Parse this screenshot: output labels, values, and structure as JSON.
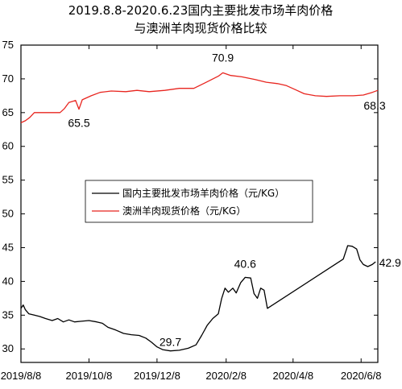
{
  "chart_data": {
    "type": "line",
    "title_line1": "2019.8.8-2020.6.23国内主要批发市场羊肉价格",
    "title_line2": "与澳洲羊肉现货价格比较",
    "xlabel": "",
    "ylabel": "",
    "ylim": [
      28,
      75
    ],
    "xlim": [
      "2019-08-08",
      "2020-06-23"
    ],
    "yticks": [
      "30",
      "35",
      "40",
      "45",
      "50",
      "55",
      "60",
      "65",
      "70",
      "75"
    ],
    "xticks": [
      {
        "date": "2019-08-08",
        "label": "2019/8/8"
      },
      {
        "date": "2019-10-08",
        "label": "2019/10/8"
      },
      {
        "date": "2019-12-08",
        "label": "2019/12/8"
      },
      {
        "date": "2020-02-08",
        "label": "2020/2/8"
      },
      {
        "date": "2020-04-08",
        "label": "2020/4/8"
      },
      {
        "date": "2020-06-08",
        "label": "2020/6/8"
      }
    ],
    "grid": false,
    "legend_position": "center",
    "series": [
      {
        "name": "国内主要批发市场羊肉价格（元/KG）",
        "color": "#000000",
        "points": [
          [
            "2019-08-08",
            36.0
          ],
          [
            "2019-08-10",
            36.5
          ],
          [
            "2019-08-12",
            35.8
          ],
          [
            "2019-08-15",
            35.2
          ],
          [
            "2019-08-20",
            35.0
          ],
          [
            "2019-08-25",
            34.8
          ],
          [
            "2019-08-30",
            34.5
          ],
          [
            "2019-09-05",
            34.2
          ],
          [
            "2019-09-10",
            34.5
          ],
          [
            "2019-09-15",
            34.0
          ],
          [
            "2019-09-20",
            34.3
          ],
          [
            "2019-09-25",
            34.0
          ],
          [
            "2019-10-01",
            34.1
          ],
          [
            "2019-10-08",
            34.2
          ],
          [
            "2019-10-15",
            34.0
          ],
          [
            "2019-10-20",
            33.8
          ],
          [
            "2019-10-25",
            33.2
          ],
          [
            "2019-11-01",
            32.8
          ],
          [
            "2019-11-08",
            32.3
          ],
          [
            "2019-11-15",
            32.1
          ],
          [
            "2019-11-22",
            32.0
          ],
          [
            "2019-11-28",
            31.6
          ],
          [
            "2019-12-03",
            31.0
          ],
          [
            "2019-12-08",
            30.3
          ],
          [
            "2019-12-13",
            29.9
          ],
          [
            "2019-12-20",
            29.7
          ],
          [
            "2019-12-28",
            29.8
          ],
          [
            "2020-01-05",
            30.1
          ],
          [
            "2020-01-12",
            30.6
          ],
          [
            "2020-01-17",
            32.0
          ],
          [
            "2020-01-22",
            33.5
          ],
          [
            "2020-01-27",
            34.5
          ],
          [
            "2020-02-01",
            35.2
          ],
          [
            "2020-02-04",
            37.5
          ],
          [
            "2020-02-07",
            39.0
          ],
          [
            "2020-02-10",
            38.4
          ],
          [
            "2020-02-14",
            39.0
          ],
          [
            "2020-02-17",
            38.3
          ],
          [
            "2020-02-21",
            39.8
          ],
          [
            "2020-02-25",
            40.6
          ],
          [
            "2020-03-01",
            40.5
          ],
          [
            "2020-03-04",
            38.2
          ],
          [
            "2020-03-07",
            37.5
          ],
          [
            "2020-03-10",
            39.0
          ],
          [
            "2020-03-13",
            38.7
          ],
          [
            "2020-03-16",
            36.0
          ],
          [
            "2020-05-23",
            43.3
          ],
          [
            "2020-05-27",
            45.3
          ],
          [
            "2020-05-31",
            45.2
          ],
          [
            "2020-06-04",
            44.8
          ],
          [
            "2020-06-07",
            43.2
          ],
          [
            "2020-06-10",
            42.5
          ],
          [
            "2020-06-14",
            42.2
          ],
          [
            "2020-06-18",
            42.5
          ],
          [
            "2020-06-21",
            42.9
          ]
        ]
      },
      {
        "name": "澳洲羊肉现货价格（元/KG）",
        "color": "#e8251f",
        "points": [
          [
            "2019-08-08",
            63.5
          ],
          [
            "2019-08-12",
            63.8
          ],
          [
            "2019-08-16",
            64.3
          ],
          [
            "2019-08-20",
            65.0
          ],
          [
            "2019-08-28",
            65.0
          ],
          [
            "2019-09-05",
            65.0
          ],
          [
            "2019-09-12",
            65.0
          ],
          [
            "2019-09-16",
            65.6
          ],
          [
            "2019-09-20",
            66.5
          ],
          [
            "2019-09-26",
            66.8
          ],
          [
            "2019-09-29",
            65.5
          ],
          [
            "2019-10-02",
            66.9
          ],
          [
            "2019-10-10",
            67.5
          ],
          [
            "2019-10-18",
            68.0
          ],
          [
            "2019-10-28",
            68.2
          ],
          [
            "2019-11-10",
            68.1
          ],
          [
            "2019-11-20",
            68.3
          ],
          [
            "2019-12-01",
            68.1
          ],
          [
            "2019-12-15",
            68.3
          ],
          [
            "2019-12-28",
            68.6
          ],
          [
            "2020-01-10",
            68.6
          ],
          [
            "2020-01-20",
            69.4
          ],
          [
            "2020-02-01",
            70.4
          ],
          [
            "2020-02-05",
            70.9
          ],
          [
            "2020-02-12",
            70.5
          ],
          [
            "2020-02-22",
            70.3
          ],
          [
            "2020-03-05",
            69.9
          ],
          [
            "2020-03-15",
            69.5
          ],
          [
            "2020-03-25",
            69.3
          ],
          [
            "2020-04-02",
            69.0
          ],
          [
            "2020-04-10",
            68.4
          ],
          [
            "2020-04-18",
            67.8
          ],
          [
            "2020-04-28",
            67.5
          ],
          [
            "2020-05-08",
            67.4
          ],
          [
            "2020-05-20",
            67.5
          ],
          [
            "2020-06-01",
            67.5
          ],
          [
            "2020-06-10",
            67.6
          ],
          [
            "2020-06-18",
            68.0
          ],
          [
            "2020-06-23",
            68.3
          ]
        ]
      }
    ],
    "annotations": [
      {
        "text": "65.5",
        "date": "2019-09-29",
        "value": 65.5
      },
      {
        "text": "70.9",
        "date": "2020-02-05",
        "value": 70.9
      },
      {
        "text": "68.3",
        "date": "2020-06-23",
        "value": 68.3
      },
      {
        "text": "29.7",
        "date": "2019-12-20",
        "value": 29.7
      },
      {
        "text": "40.6",
        "date": "2020-02-25",
        "value": 40.6
      },
      {
        "text": "42.9",
        "date": "2020-06-21",
        "value": 42.9
      }
    ]
  }
}
